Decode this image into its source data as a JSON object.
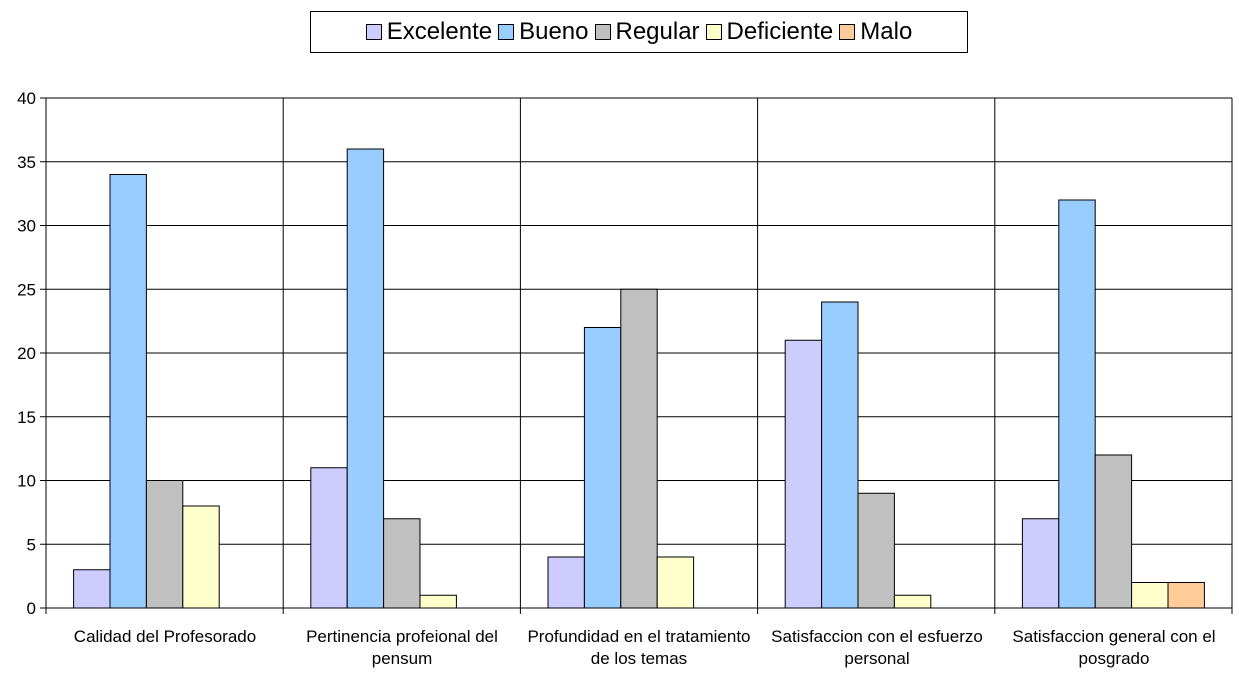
{
  "chart_data": {
    "type": "bar",
    "categories": [
      "Calidad del Profesorado",
      "Pertinencia profeional del pensum",
      "Profundidad en el tratamiento de los temas",
      "Satisfaccion con el esfuerzo personal",
      "Satisfaccion general con el posgrado"
    ],
    "series": [
      {
        "name": "Excelente",
        "color": "#ccccff",
        "values": [
          3,
          11,
          4,
          21,
          7
        ]
      },
      {
        "name": "Bueno",
        "color": "#99ccff",
        "values": [
          34,
          36,
          22,
          24,
          32
        ]
      },
      {
        "name": "Regular",
        "color": "#c0c0c0",
        "values": [
          10,
          7,
          25,
          9,
          12
        ]
      },
      {
        "name": "Deficiente",
        "color": "#ffffcc",
        "values": [
          8,
          1,
          4,
          1,
          2
        ]
      },
      {
        "name": "Malo",
        "color": "#ffcc99",
        "values": [
          0,
          0,
          0,
          0,
          2
        ]
      }
    ],
    "ylim": [
      0,
      40
    ],
    "yticks": [
      "0",
      "5",
      "10",
      "15",
      "20",
      "25",
      "30",
      "35",
      "40"
    ],
    "grid": true,
    "legend_position": "top"
  }
}
